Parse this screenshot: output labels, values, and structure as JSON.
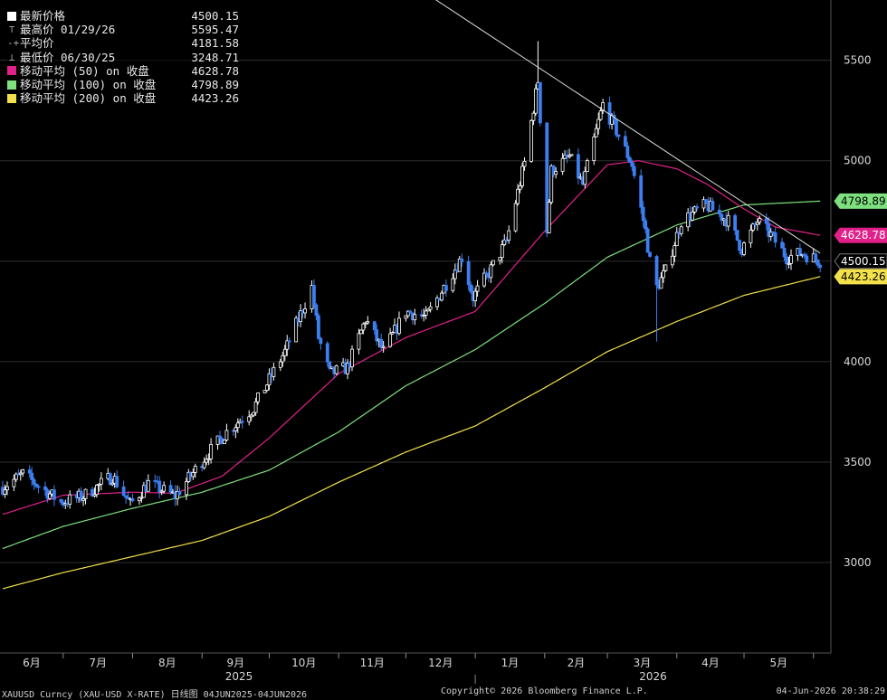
{
  "legend": {
    "rows": [
      {
        "label": "最新价格",
        "value": "4500.15",
        "swatch": "#ffffff"
      },
      {
        "label": "最高价 01/29/26",
        "value": "5595.47",
        "icon": "high-marker-icon"
      },
      {
        "label": "平均价",
        "value": "4181.58",
        "icon": "average-marker-icon"
      },
      {
        "label": "最低价 06/30/25",
        "value": "3248.71",
        "icon": "low-marker-icon"
      },
      {
        "label": "移动平均 (50) on 收盘",
        "value": "4628.78",
        "swatch": "#e0218a"
      },
      {
        "label": "移动平均 (100) on 收盘",
        "value": "4798.89",
        "swatch": "#7ee07e"
      },
      {
        "label": "移动平均 (200) on 收盘",
        "value": "4423.26",
        "swatch": "#f2e14a"
      }
    ]
  },
  "footer": {
    "left": "XAUUSD Curncy (XAU-USD X-RATE) 日线图 04JUN2025-04JUN2026",
    "center": "Copyright© 2026 Bloomberg Finance L.P.",
    "right": "04-Jun-2026 20:38:29"
  },
  "chart_data": {
    "type": "candlestick",
    "ylim": [
      2550,
      5800
    ],
    "yticks": [
      3000,
      3500,
      4000,
      4500,
      5000,
      5500
    ],
    "grid": true,
    "x_months": [
      "6月",
      "7月",
      "8月",
      "9月",
      "10月",
      "11月",
      "12月",
      "1月",
      "2月",
      "3月",
      "4月",
      "5月"
    ],
    "x_years": [
      "2025",
      "2026"
    ],
    "x_range": [
      "2025-06-04",
      "2026-06-04"
    ],
    "price_anchors": [
      [
        "2025-06-04",
        3375
      ],
      [
        "2025-06-13",
        3440
      ],
      [
        "2025-06-30",
        3300
      ],
      [
        "2025-07-10",
        3330
      ],
      [
        "2025-07-23",
        3430
      ],
      [
        "2025-07-31",
        3290
      ],
      [
        "2025-08-08",
        3395
      ],
      [
        "2025-08-20",
        3330
      ],
      [
        "2025-09-02",
        3520
      ],
      [
        "2025-09-12",
        3650
      ],
      [
        "2025-09-24",
        3770
      ],
      [
        "2025-10-08",
        4050
      ],
      [
        "2025-10-20",
        4370
      ],
      [
        "2025-10-23",
        4120
      ],
      [
        "2025-10-28",
        3940
      ],
      [
        "2025-11-05",
        3970
      ],
      [
        "2025-11-13",
        4210
      ],
      [
        "2025-11-21",
        4050
      ],
      [
        "2025-12-01",
        4250
      ],
      [
        "2025-12-10",
        4220
      ],
      [
        "2025-12-26",
        4520
      ],
      [
        "2025-12-31",
        4320
      ],
      [
        "2026-01-08",
        4460
      ],
      [
        "2026-01-15",
        4600
      ],
      [
        "2026-01-23",
        4990
      ],
      [
        "2026-01-29",
        5400
      ],
      [
        "2026-02-02",
        4650
      ],
      [
        "2026-02-04",
        4950
      ],
      [
        "2026-02-12",
        5020
      ],
      [
        "2026-02-18",
        4880
      ],
      [
        "2026-02-27",
        5280
      ],
      [
        "2026-03-05",
        5150
      ],
      [
        "2026-03-12",
        4980
      ],
      [
        "2026-03-18",
        4650
      ],
      [
        "2026-03-22",
        4350
      ],
      [
        "2026-03-27",
        4450
      ],
      [
        "2026-04-03",
        4700
      ],
      [
        "2026-04-14",
        4780
      ],
      [
        "2026-04-24",
        4700
      ],
      [
        "2026-04-30",
        4560
      ],
      [
        "2026-05-07",
        4700
      ],
      [
        "2026-05-13",
        4630
      ],
      [
        "2026-05-20",
        4520
      ],
      [
        "2026-05-27",
        4540
      ],
      [
        "2026-06-04",
        4500.15
      ]
    ],
    "ma50_anchors": [
      [
        "2025-06-04",
        3240
      ],
      [
        "2025-07-01",
        3335
      ],
      [
        "2025-08-01",
        3350
      ],
      [
        "2025-08-20",
        3345
      ],
      [
        "2025-09-10",
        3430
      ],
      [
        "2025-10-01",
        3620
      ],
      [
        "2025-11-01",
        3940
      ],
      [
        "2025-12-01",
        4120
      ],
      [
        "2026-01-01",
        4250
      ],
      [
        "2026-02-01",
        4650
      ],
      [
        "2026-03-01",
        4980
      ],
      [
        "2026-03-15",
        5000
      ],
      [
        "2026-04-01",
        4960
      ],
      [
        "2026-04-15",
        4880
      ],
      [
        "2026-05-01",
        4760
      ],
      [
        "2026-05-15",
        4670
      ],
      [
        "2026-06-04",
        4628.78
      ]
    ],
    "ma100_anchors": [
      [
        "2025-06-04",
        3070
      ],
      [
        "2025-07-01",
        3180
      ],
      [
        "2025-08-01",
        3270
      ],
      [
        "2025-09-01",
        3350
      ],
      [
        "2025-10-01",
        3460
      ],
      [
        "2025-11-01",
        3650
      ],
      [
        "2025-12-01",
        3880
      ],
      [
        "2026-01-01",
        4060
      ],
      [
        "2026-02-01",
        4290
      ],
      [
        "2026-03-01",
        4520
      ],
      [
        "2026-04-01",
        4680
      ],
      [
        "2026-05-01",
        4780
      ],
      [
        "2026-06-04",
        4798.89
      ]
    ],
    "ma200_anchors": [
      [
        "2025-06-04",
        2870
      ],
      [
        "2025-07-01",
        2950
      ],
      [
        "2025-08-01",
        3030
      ],
      [
        "2025-09-01",
        3110
      ],
      [
        "2025-10-01",
        3230
      ],
      [
        "2025-11-01",
        3400
      ],
      [
        "2025-12-01",
        3550
      ],
      [
        "2026-01-01",
        3680
      ],
      [
        "2026-02-01",
        3870
      ],
      [
        "2026-03-01",
        4050
      ],
      [
        "2026-04-01",
        4200
      ],
      [
        "2026-05-01",
        4330
      ],
      [
        "2026-06-04",
        4423.26
      ]
    ],
    "trendline": [
      [
        "2025-12-05",
        5870
      ],
      [
        "2026-06-04",
        4540
      ]
    ],
    "high": {
      "date": "2026-01-29",
      "value": 5595.47
    },
    "low_spikes": [
      [
        "2026-01-31",
        4400
      ],
      [
        "2026-03-23",
        4100
      ]
    ],
    "last_price_tags": [
      {
        "value": "4798.89",
        "color": "#7ee07e",
        "text_color": "#000000"
      },
      {
        "value": "4628.78",
        "color": "#e0218a",
        "text_color": "#ffffff"
      },
      {
        "value": "4500.15",
        "color": "#000000",
        "text_color": "#ffffff"
      },
      {
        "value": "4423.26",
        "color": "#f2e14a",
        "text_color": "#000000"
      }
    ]
  },
  "colors": {
    "candle_up": "#ffffff",
    "candle_down": "#3d7ef0",
    "grid": "#2e2e2e",
    "trendline": "#dddddd"
  }
}
